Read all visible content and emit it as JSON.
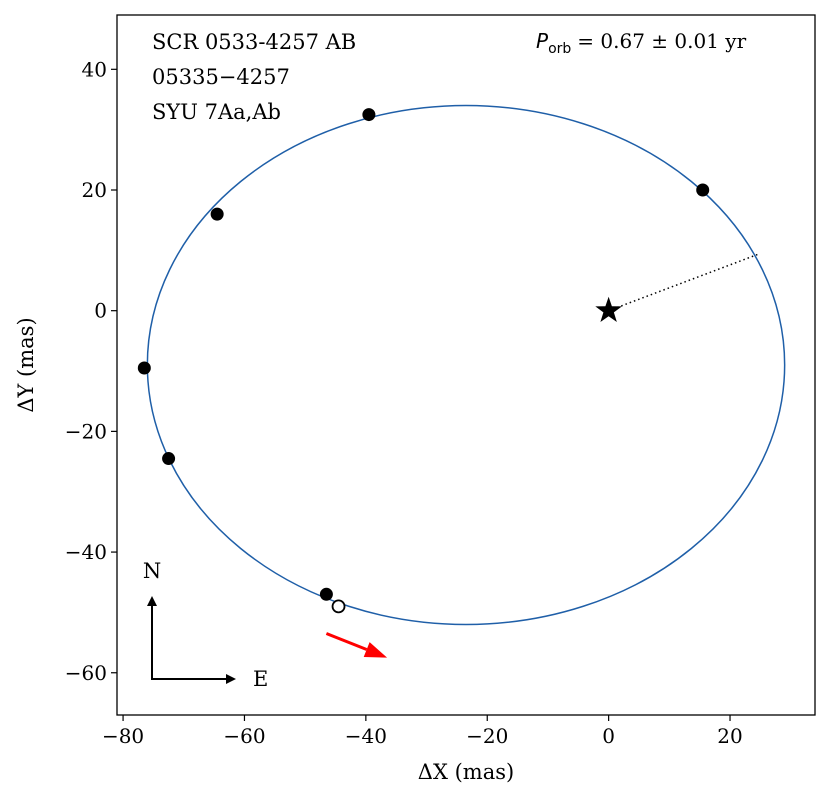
{
  "chart_data": {
    "type": "scatter",
    "xlabel": "ΔX  (mas)",
    "ylabel": "ΔY  (mas)",
    "xlim": [
      -81,
      34
    ],
    "ylim": [
      -67,
      49
    ],
    "x_ticks": [
      -80,
      -60,
      -40,
      -20,
      0,
      20
    ],
    "y_ticks": [
      -60,
      -40,
      -20,
      0,
      20,
      40
    ],
    "x_tick_labels": [
      "−80",
      "−60",
      "−40",
      "−20",
      "0",
      "20"
    ],
    "y_tick_labels": [
      "−60",
      "−40",
      "−20",
      "0",
      "20",
      "40"
    ],
    "annotations": {
      "line1": "SCR 0533-4257 AB",
      "line2": "05335−4257",
      "line3": "SYU 7Aa,Ab"
    },
    "period": {
      "symbol": "P",
      "subscript": "orb",
      "value": "=  0.67 ± 0.01 yr"
    },
    "compass": {
      "north": "N",
      "east": "E"
    },
    "primary_star": {
      "x": 0,
      "y": 0
    },
    "orbit": {
      "center": [
        -23.5,
        -9
      ],
      "semi_axis_x": 52.5,
      "semi_axis_y": 43,
      "color": "#1f5fa8"
    },
    "periastron_line": {
      "from": [
        0,
        0
      ],
      "to": [
        24.5,
        9.3
      ]
    },
    "observations_filled": [
      {
        "x": 15.5,
        "y": 20
      },
      {
        "x": -39.5,
        "y": 32.5
      },
      {
        "x": -64.5,
        "y": 16
      },
      {
        "x": -76.5,
        "y": -9.5
      },
      {
        "x": -72.5,
        "y": -24.5
      },
      {
        "x": -46.5,
        "y": -47
      }
    ],
    "observations_open": [
      {
        "x": -44.5,
        "y": -49
      }
    ],
    "motion_arrow": {
      "from": [
        -46.5,
        -53.5
      ],
      "to": [
        -36.5,
        -57.5
      ],
      "color": "#ff0000"
    }
  }
}
